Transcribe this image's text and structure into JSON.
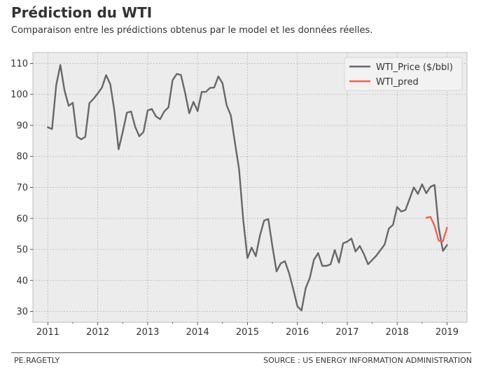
{
  "header": {
    "title": "Prédiction du WTI",
    "subtitle": "Comparaison entre les prédictions obtenus par le model et les données réelles."
  },
  "footer": {
    "left": "PE.RAGETLY",
    "right": "SOURCE : US ENERGY INFORMATION ADMINISTRATION"
  },
  "chart_data": {
    "type": "line",
    "title": "",
    "xlabel": "",
    "ylabel": "",
    "xlim": [
      2010.7,
      2019.4
    ],
    "ylim": [
      26.5,
      113.5
    ],
    "xticks": [
      2011,
      2012,
      2013,
      2014,
      2015,
      2016,
      2017,
      2018,
      2019
    ],
    "yticks": [
      30,
      40,
      50,
      60,
      70,
      80,
      90,
      100,
      110
    ],
    "grid": true,
    "legend_position": "top-right",
    "colors": {
      "background": "#ececec",
      "grid": "#b5b5b5",
      "price": "#676767",
      "pred": "#f1624b"
    },
    "series": [
      {
        "name": "WTI_Price ($/bbl)",
        "x": [
          2011.0,
          2011.083,
          2011.167,
          2011.25,
          2011.333,
          2011.417,
          2011.5,
          2011.583,
          2011.667,
          2011.75,
          2011.833,
          2011.917,
          2012.0,
          2012.083,
          2012.167,
          2012.25,
          2012.333,
          2012.417,
          2012.5,
          2012.583,
          2012.667,
          2012.75,
          2012.833,
          2012.917,
          2013.0,
          2013.083,
          2013.167,
          2013.25,
          2013.333,
          2013.417,
          2013.5,
          2013.583,
          2013.667,
          2013.75,
          2013.833,
          2013.917,
          2014.0,
          2014.083,
          2014.167,
          2014.25,
          2014.333,
          2014.417,
          2014.5,
          2014.583,
          2014.667,
          2014.75,
          2014.833,
          2014.917,
          2015.0,
          2015.083,
          2015.167,
          2015.25,
          2015.333,
          2015.417,
          2015.5,
          2015.583,
          2015.667,
          2015.75,
          2015.833,
          2015.917,
          2016.0,
          2016.083,
          2016.167,
          2016.25,
          2016.333,
          2016.417,
          2016.5,
          2016.583,
          2016.667,
          2016.75,
          2016.833,
          2016.917,
          2017.0,
          2017.083,
          2017.167,
          2017.25,
          2017.333,
          2017.417,
          2017.5,
          2017.583,
          2017.667,
          2017.75,
          2017.833,
          2017.917,
          2018.0,
          2018.083,
          2018.167,
          2018.25,
          2018.333,
          2018.417,
          2018.5,
          2018.583,
          2018.667,
          2018.75,
          2018.833,
          2018.917,
          2019.0
        ],
        "values": [
          89.4,
          88.8,
          103.0,
          109.5,
          101.3,
          96.3,
          97.3,
          86.4,
          85.5,
          86.3,
          97.2,
          98.6,
          100.3,
          102.2,
          106.2,
          103.3,
          94.7,
          82.3,
          87.9,
          94.1,
          94.5,
          89.5,
          86.5,
          87.9,
          94.8,
          95.3,
          92.9,
          92.0,
          94.5,
          95.8,
          104.6,
          106.6,
          106.3,
          100.5,
          93.9,
          97.6,
          94.6,
          100.8,
          100.8,
          102.1,
          102.2,
          105.8,
          103.6,
          96.5,
          93.2,
          84.4,
          75.8,
          59.3,
          47.2,
          50.6,
          47.8,
          54.5,
          59.3,
          59.8,
          50.9,
          42.9,
          45.5,
          46.2,
          42.4,
          37.2,
          31.7,
          30.3,
          37.5,
          40.8,
          46.7,
          48.8,
          44.7,
          44.7,
          45.2,
          49.8,
          45.7,
          52.0,
          52.5,
          53.5,
          49.3,
          51.1,
          48.5,
          45.2,
          46.6,
          48.0,
          49.8,
          51.6,
          56.7,
          57.9,
          63.7,
          62.2,
          62.7,
          66.3,
          70.0,
          67.9,
          71.0,
          68.1,
          70.2,
          70.8,
          57.0,
          49.5,
          51.4
        ]
      },
      {
        "name": "WTI_pred",
        "x": [
          2018.583,
          2018.667,
          2018.75,
          2018.833,
          2018.917,
          2019.0
        ],
        "values": [
          60.2,
          60.5,
          57.6,
          52.8,
          52.6,
          57.0
        ]
      }
    ]
  }
}
